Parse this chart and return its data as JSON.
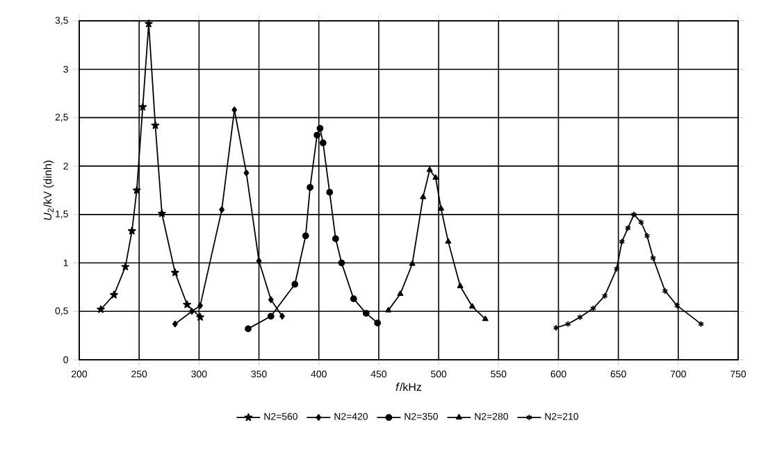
{
  "chart_data": {
    "type": "line",
    "xlabel": "*f*/kHz",
    "ylabel": "*U*$_{2}$/kV (dinh)",
    "xlim": [
      200,
      750
    ],
    "xticks": [
      200,
      250,
      300,
      350,
      400,
      450,
      500,
      550,
      600,
      650,
      700,
      750
    ],
    "ylim": [
      0,
      3.5
    ],
    "yticks": [
      0,
      {
        "value": 0.5,
        "label": "0,5"
      },
      1,
      {
        "value": 1.5,
        "label": "1,5"
      },
      2,
      {
        "value": 2.5,
        "label": "2,5"
      },
      3,
      {
        "value": 3.5,
        "label": "3,5"
      }
    ],
    "grid": true,
    "legend": "bottom",
    "line_style": "solid",
    "series": [
      {
        "name": "N2=560",
        "color": "#000000",
        "marker": "star",
        "x": [
          218,
          229,
          238.5,
          244,
          248,
          253,
          258,
          263.5,
          269,
          280,
          290,
          301
        ],
        "values": [
          0.52,
          0.67,
          0.96,
          1.33,
          1.75,
          2.61,
          3.47,
          2.42,
          1.51,
          0.9,
          0.57,
          0.44
        ]
      },
      {
        "name": "N2=420",
        "color": "#000000",
        "marker": "diamond",
        "x": [
          280,
          294,
          301,
          319,
          329.5,
          339.5,
          350,
          360,
          369.4
        ],
        "values": [
          0.37,
          0.5,
          0.56,
          1.55,
          2.58,
          1.93,
          1.02,
          0.62,
          0.45
        ]
      },
      {
        "name": "N2=350",
        "color": "#000000",
        "marker": "circle",
        "x": [
          341,
          360,
          380,
          389,
          392.7,
          398.5,
          401,
          403.5,
          409,
          414,
          419,
          429,
          439.5,
          449
        ],
        "values": [
          0.32,
          0.45,
          0.78,
          1.28,
          1.78,
          2.32,
          2.39,
          2.24,
          1.73,
          1.25,
          1.0,
          0.63,
          0.48,
          0.38
        ]
      },
      {
        "name": "N2=280",
        "color": "#000000",
        "marker": "triangle",
        "x": [
          458,
          468,
          478,
          487,
          492.5,
          497.5,
          502,
          508,
          518,
          528,
          539
        ],
        "values": [
          0.51,
          0.68,
          0.99,
          1.68,
          1.96,
          1.88,
          1.56,
          1.22,
          0.76,
          0.55,
          0.42
        ]
      },
      {
        "name": "N2=210",
        "color": "#000000",
        "marker": "cross",
        "x": [
          598,
          608,
          618,
          629,
          638.7,
          648.6,
          653,
          658,
          663,
          669,
          674,
          679,
          689,
          699,
          719
        ],
        "values": [
          0.33,
          0.37,
          0.44,
          0.53,
          0.66,
          0.94,
          1.22,
          1.36,
          1.5,
          1.42,
          1.28,
          1.05,
          0.71,
          0.56,
          0.37
        ]
      }
    ]
  }
}
